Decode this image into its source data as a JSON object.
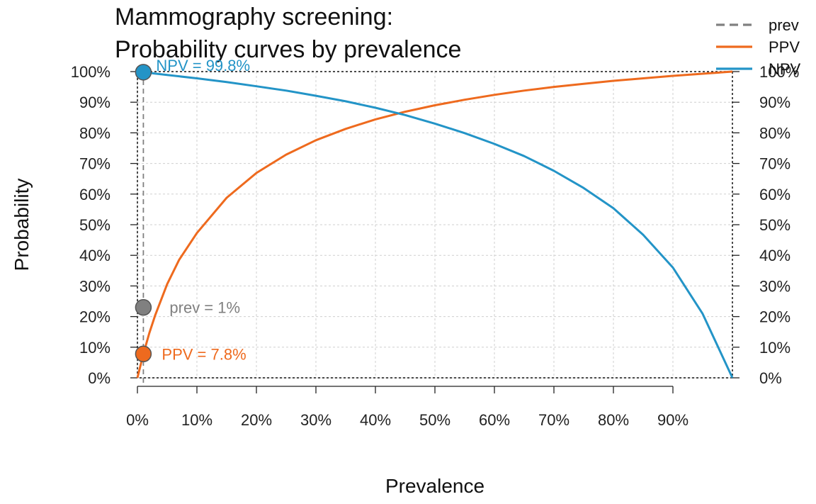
{
  "chart_data": {
    "type": "line",
    "title_line1": "Mammography screening:",
    "title_line2": "Probability curves by prevalence",
    "xlabel": "Prevalence",
    "ylabel": "Probability",
    "xlim": [
      0,
      100
    ],
    "ylim": [
      0,
      100
    ],
    "x_ticks": [
      "0%",
      "10%",
      "20%",
      "30%",
      "40%",
      "50%",
      "60%",
      "70%",
      "80%",
      "90%"
    ],
    "x_tick_values": [
      0,
      10,
      20,
      30,
      40,
      50,
      60,
      70,
      80,
      90
    ],
    "y_ticks": [
      "0%",
      "10%",
      "20%",
      "30%",
      "40%",
      "50%",
      "60%",
      "70%",
      "80%",
      "90%",
      "100%"
    ],
    "y_tick_values": [
      0,
      10,
      20,
      30,
      40,
      50,
      60,
      70,
      80,
      90,
      100
    ],
    "grid": true,
    "legend_position": "top-right",
    "series": [
      {
        "name": "PPV",
        "color": "#EE6A1E",
        "x": [
          0,
          1,
          2,
          3,
          5,
          7,
          10,
          15,
          20,
          25,
          30,
          35,
          40,
          45,
          50,
          55,
          60,
          65,
          70,
          75,
          80,
          85,
          90,
          95,
          100
        ],
        "y": [
          0,
          7.8,
          14.6,
          20.5,
          30.6,
          38.5,
          47.3,
          58.8,
          66.9,
          72.9,
          77.6,
          81.3,
          84.4,
          86.9,
          89.0,
          90.8,
          92.4,
          93.8,
          95.0,
          96.0,
          97.0,
          97.8,
          98.6,
          99.3,
          100
        ]
      },
      {
        "name": "NPV",
        "color": "#2394C7",
        "x": [
          0,
          1,
          5,
          10,
          15,
          20,
          25,
          30,
          35,
          40,
          45,
          50,
          55,
          60,
          65,
          70,
          75,
          80,
          85,
          90,
          95,
          100
        ],
        "y": [
          100,
          99.8,
          98.9,
          97.8,
          96.6,
          95.2,
          93.8,
          92.1,
          90.3,
          88.2,
          85.8,
          83.0,
          79.9,
          76.4,
          72.4,
          67.6,
          62.0,
          55.4,
          46.7,
          36.0,
          20.9,
          0
        ]
      }
    ],
    "prevalence_line": {
      "name": "prev",
      "x": 1,
      "color": "#808080"
    },
    "points": [
      {
        "label": "NPV = 99.8%",
        "x": 1,
        "y": 99.8,
        "color": "#2394C7"
      },
      {
        "label": "prev = 1%",
        "x": 1,
        "y": 23,
        "color": "#808080"
      },
      {
        "label": "PPV = 7.8%",
        "x": 1,
        "y": 7.8,
        "color": "#EE6A1E"
      }
    ],
    "legend": [
      {
        "label": "prev",
        "style": "dashed",
        "color": "#808080"
      },
      {
        "label": "PPV",
        "style": "solid",
        "color": "#EE6A1E"
      },
      {
        "label": "NPV",
        "style": "solid",
        "color": "#2394C7"
      }
    ]
  }
}
